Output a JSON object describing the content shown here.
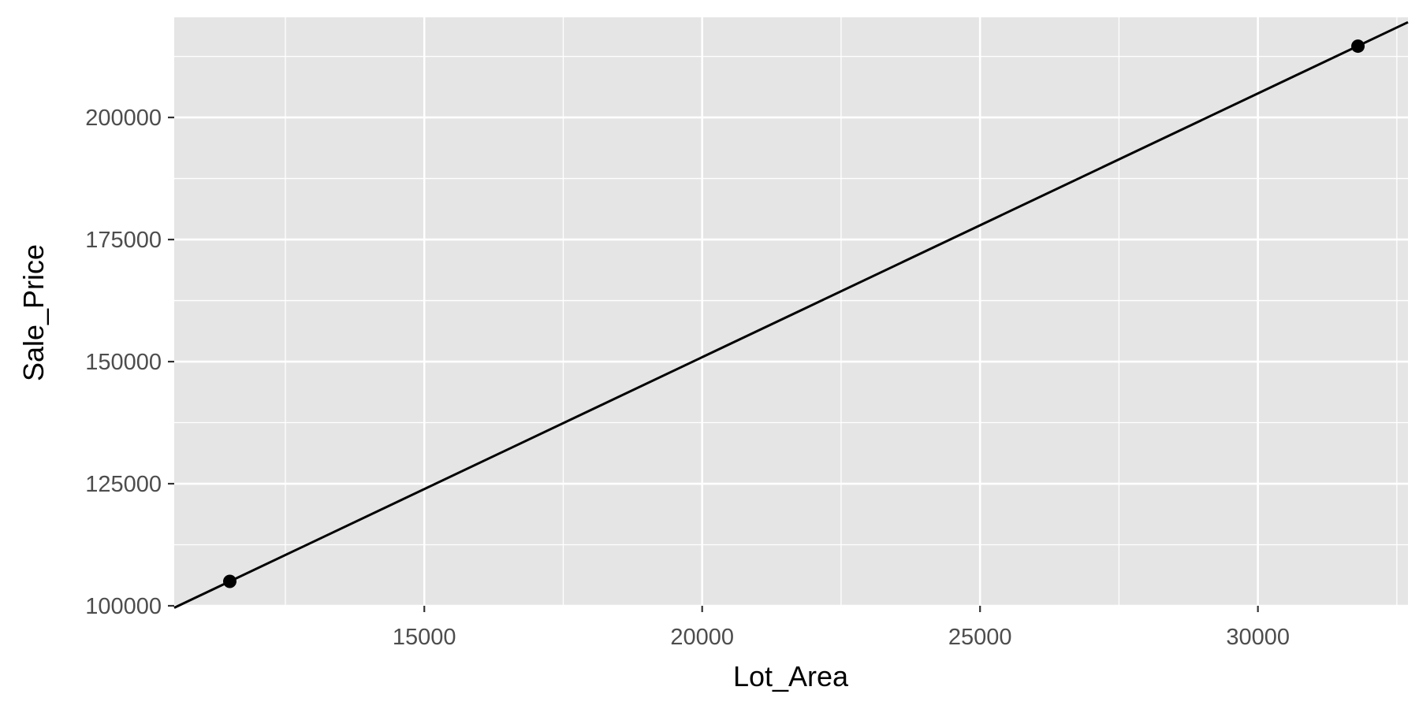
{
  "chart_data": {
    "type": "scatter",
    "xlabel": "Lot_Area",
    "ylabel": "Sale_Price",
    "xlim": [
      10500,
      32700
    ],
    "ylim": [
      100000,
      220500
    ],
    "x_ticks": [
      15000,
      20000,
      25000,
      30000
    ],
    "y_ticks": [
      100000,
      125000,
      150000,
      175000,
      200000
    ],
    "x_minor_ticks": [
      12500,
      17500,
      22500,
      27500,
      32500
    ],
    "y_minor_ticks": [
      112500,
      137500,
      162500,
      187500,
      212500
    ],
    "x_tick_labels": [
      "15000",
      "20000",
      "25000",
      "30000"
    ],
    "y_tick_labels": [
      "100000",
      "125000",
      "150000",
      "175000",
      "200000"
    ],
    "grid": true,
    "colors": {
      "panel": "#e5e5e5",
      "grid": "#ffffff",
      "mark": "#000000",
      "tick_text": "#4d4d4d"
    },
    "series": [
      {
        "points": [
          {
            "x": 11500,
            "y": 105000
          },
          {
            "x": 31800,
            "y": 214600
          }
        ],
        "line": {
          "x": [
            10500,
            32700
          ],
          "y": [
            99600,
            219500
          ]
        }
      }
    ]
  }
}
